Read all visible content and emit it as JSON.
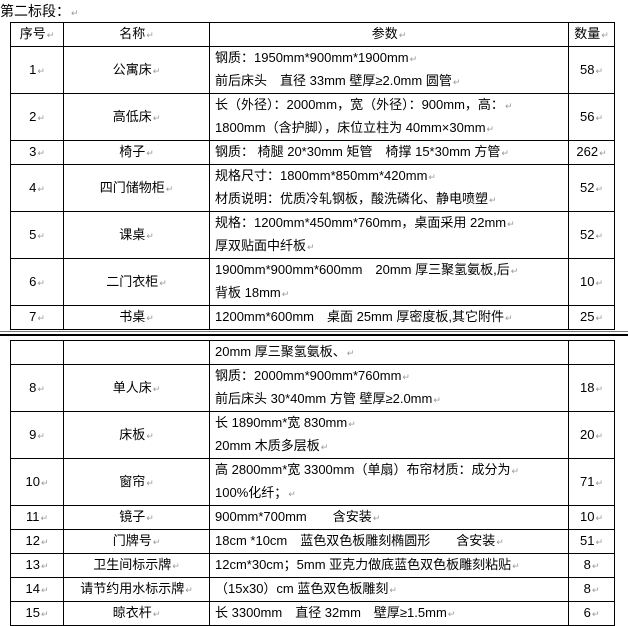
{
  "section_title": "第二标段：",
  "headers": [
    "序号",
    "名称",
    "参数",
    "数量"
  ],
  "table1": [
    {
      "no": "1",
      "name": "公寓床",
      "params": [
        "钢质：1950mm*900mm*1900mm",
        "前后床头　直径 33mm  壁厚≥2.0mm 圆管"
      ],
      "qty": "58"
    },
    {
      "no": "2",
      "name": "高低床",
      "params": [
        "长（外径）：2000mm，宽（外径）：900mm，高：",
        "1800mm（含护脚），床位立柱为 40mm×30mm"
      ],
      "qty": "56"
    },
    {
      "no": "3",
      "name": "椅子",
      "params": [
        "钢质： 椅腿 20*30mm  矩管　椅撑 15*30mm  方管"
      ],
      "qty": "262"
    },
    {
      "no": "4",
      "name": "四门储物柜",
      "params": [
        "规格尺寸：1800mm*850mm*420mm",
        "材质说明：优质冷轧钢板，酸洗磷化、静电喷塑"
      ],
      "qty": "52"
    },
    {
      "no": "5",
      "name": "课桌",
      "params": [
        "规格：1200mm*450mm*760mm，桌面采用 22mm",
        "厚双贴面中纤板"
      ],
      "qty": "52"
    },
    {
      "no": "6",
      "name": "二门衣柜",
      "params": [
        "1900mm*900mm*600mm　20mm 厚三聚氢氨板,后",
        "背板 18mm"
      ],
      "qty": "10"
    },
    {
      "no": "7",
      "name": "书桌",
      "params": [
        "1200mm*600mm　桌面 25mm 厚密度板,其它附件"
      ],
      "qty": "25"
    }
  ],
  "continuation": "20mm 厚三聚氢氨板、",
  "table2": [
    {
      "no": "8",
      "name": "单人床",
      "params": [
        "钢质：2000mm*900mm*760mm",
        "前后床头 30*40mm  方管  壁厚≥2.0mm"
      ],
      "qty": "18"
    },
    {
      "no": "9",
      "name": "床板",
      "params": [
        "长 1890mm*宽 830mm",
        "20mm 木质多层板"
      ],
      "qty": "20"
    },
    {
      "no": "10",
      "name": "窗帘",
      "params": [
        "高 2800mm*宽 3300mm（单扇）布帘材质：成分为",
        "100%化纤；"
      ],
      "qty": "71"
    },
    {
      "no": "11",
      "name": "镜子",
      "params": [
        "900mm*700mm　　含安装"
      ],
      "qty": "10"
    },
    {
      "no": "12",
      "name": "门牌号",
      "params": [
        "18cm *10cm　蓝色双色板雕刻椭圆形　　含安装"
      ],
      "qty": "51"
    },
    {
      "no": "13",
      "name": "卫生间标示牌",
      "params": [
        "12cm*30cm；5mm 亚克力做底蓝色双色板雕刻粘贴"
      ],
      "qty": "8"
    },
    {
      "no": "14",
      "name": "请节约用水标示牌",
      "params": [
        "（15x30）cm 蓝色双色板雕刻"
      ],
      "qty": "8"
    },
    {
      "no": "15",
      "name": "晾衣杆",
      "params": [
        "长 3300mm　直径 32mm　壁厚≥1.5mm"
      ],
      "qty": "6"
    }
  ]
}
